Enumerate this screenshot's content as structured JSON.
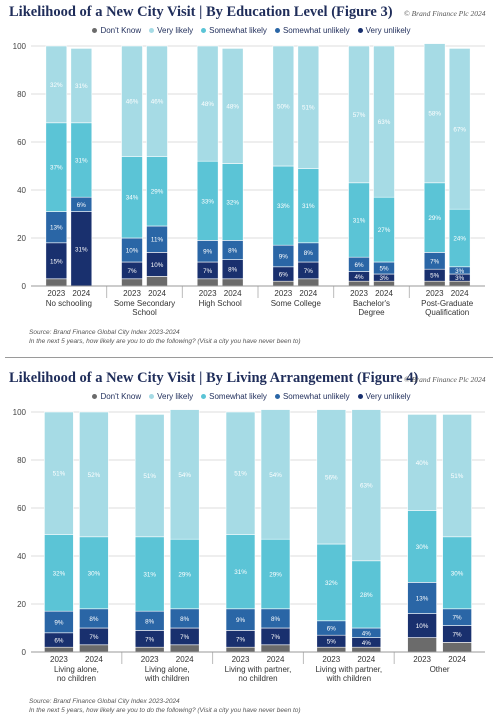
{
  "colors": {
    "dont_know": "#6b6b6b",
    "very_likely": "#a6dbe5",
    "somewhat_likely": "#5bc4d6",
    "somewhat_unlikely": "#2a66a6",
    "very_unlikely": "#19306e"
  },
  "legend": [
    {
      "label": "Don't Know",
      "color": "#6b6b6b"
    },
    {
      "label": "Very likely",
      "color": "#a6dbe5"
    },
    {
      "label": "Somewhat likely",
      "color": "#5bc4d6"
    },
    {
      "label": "Somewhat unlikely",
      "color": "#2a66a6"
    },
    {
      "label": "Very unlikely",
      "color": "#19306e"
    }
  ],
  "copyright": "© Brand Finance Plc 2024",
  "chart_data": [
    {
      "type": "bar",
      "stacked": true,
      "title": "Likelihood of a New City Visit | By Education Level (Figure 3)",
      "source": "Source: Brand Finance Global City Index 2023-2024",
      "question": "In the next 5 years, how likely are you to do the following? (Visit a city you have never been to)",
      "ylim": [
        0,
        100
      ],
      "yticks": [
        0,
        20,
        40,
        60,
        80,
        100
      ],
      "grid": true,
      "legend_position": "top",
      "groups": [
        {
          "label": [
            "No schooling"
          ],
          "bars": [
            {
              "year": "2023",
              "dont_know": 3,
              "very_unlikely": 15,
              "somewhat_unlikely": 13,
              "somewhat_likely": 37,
              "very_likely": 32
            },
            {
              "year": "2024",
              "dont_know": 0,
              "very_unlikely": 31,
              "somewhat_unlikely": 6,
              "somewhat_likely": 31,
              "very_likely": 31
            }
          ]
        },
        {
          "label": [
            "Some Secondary",
            "School"
          ],
          "bars": [
            {
              "year": "2023",
              "dont_know": 3,
              "very_unlikely": 7,
              "somewhat_unlikely": 10,
              "somewhat_likely": 34,
              "very_likely": 46
            },
            {
              "year": "2024",
              "dont_know": 4,
              "very_unlikely": 10,
              "somewhat_unlikely": 11,
              "somewhat_likely": 29,
              "very_likely": 46
            }
          ]
        },
        {
          "label": [
            "High School"
          ],
          "bars": [
            {
              "year": "2023",
              "dont_know": 3,
              "very_unlikely": 7,
              "somewhat_unlikely": 9,
              "somewhat_likely": 33,
              "very_likely": 48
            },
            {
              "year": "2024",
              "dont_know": 3,
              "very_unlikely": 8,
              "somewhat_unlikely": 8,
              "somewhat_likely": 32,
              "very_likely": 48
            }
          ]
        },
        {
          "label": [
            "Some College"
          ],
          "bars": [
            {
              "year": "2023",
              "dont_know": 2,
              "very_unlikely": 6,
              "somewhat_unlikely": 9,
              "somewhat_likely": 33,
              "very_likely": 50
            },
            {
              "year": "2024",
              "dont_know": 3,
              "very_unlikely": 7,
              "somewhat_unlikely": 8,
              "somewhat_likely": 31,
              "very_likely": 51
            }
          ]
        },
        {
          "label": [
            "Bachelor's",
            "Degree"
          ],
          "bars": [
            {
              "year": "2023",
              "dont_know": 2,
              "very_unlikely": 4,
              "somewhat_unlikely": 6,
              "somewhat_likely": 31,
              "very_likely": 57
            },
            {
              "year": "2024",
              "dont_know": 2,
              "very_unlikely": 3,
              "somewhat_unlikely": 5,
              "somewhat_likely": 27,
              "very_likely": 63
            }
          ]
        },
        {
          "label": [
            "Post-Graduate",
            "Qualification"
          ],
          "bars": [
            {
              "year": "2023",
              "dont_know": 2,
              "very_unlikely": 5,
              "somewhat_unlikely": 7,
              "somewhat_likely": 29,
              "very_likely": 58
            },
            {
              "year": "2024",
              "dont_know": 2,
              "very_unlikely": 3,
              "somewhat_unlikely": 3,
              "somewhat_likely": 24,
              "very_likely": 67
            }
          ]
        }
      ]
    },
    {
      "type": "bar",
      "stacked": true,
      "title": "Likelihood of a New City Visit | By Living Arrangement (Figure 4)",
      "source": "Source: Brand Finance Global City Index 2023-2024",
      "question": "In the next 5 years, how likely are you to do the following? (Visit a city you have never been to)",
      "ylim": [
        0,
        100
      ],
      "yticks": [
        0,
        20,
        40,
        60,
        80,
        100
      ],
      "grid": true,
      "legend_position": "top",
      "groups": [
        {
          "label": [
            "Living alone,",
            "no children"
          ],
          "bars": [
            {
              "year": "2023",
              "dont_know": 2,
              "very_unlikely": 6,
              "somewhat_unlikely": 9,
              "somewhat_likely": 32,
              "very_likely": 51
            },
            {
              "year": "2024",
              "dont_know": 3,
              "very_unlikely": 7,
              "somewhat_unlikely": 8,
              "somewhat_likely": 30,
              "very_likely": 52
            }
          ]
        },
        {
          "label": [
            "Living alone,",
            "with children"
          ],
          "bars": [
            {
              "year": "2023",
              "dont_know": 2,
              "very_unlikely": 7,
              "somewhat_unlikely": 8,
              "somewhat_likely": 31,
              "very_likely": 51
            },
            {
              "year": "2024",
              "dont_know": 3,
              "very_unlikely": 7,
              "somewhat_unlikely": 8,
              "somewhat_likely": 29,
              "very_likely": 54
            }
          ]
        },
        {
          "label": [
            "Living with partner,",
            "no children"
          ],
          "bars": [
            {
              "year": "2023",
              "dont_know": 2,
              "very_unlikely": 7,
              "somewhat_unlikely": 9,
              "somewhat_likely": 31,
              "very_likely": 51
            },
            {
              "year": "2024",
              "dont_know": 3,
              "very_unlikely": 7,
              "somewhat_unlikely": 8,
              "somewhat_likely": 29,
              "very_likely": 54
            }
          ]
        },
        {
          "label": [
            "Living with partner,",
            "with children"
          ],
          "bars": [
            {
              "year": "2023",
              "dont_know": 2,
              "very_unlikely": 5,
              "somewhat_unlikely": 6,
              "somewhat_likely": 32,
              "very_likely": 56
            },
            {
              "year": "2024",
              "dont_know": 2,
              "very_unlikely": 4,
              "somewhat_unlikely": 4,
              "somewhat_likely": 28,
              "very_likely": 63
            }
          ]
        },
        {
          "label": [
            "Other"
          ],
          "bars": [
            {
              "year": "2023",
              "dont_know": 6,
              "very_unlikely": 10,
              "somewhat_unlikely": 13,
              "somewhat_likely": 30,
              "very_likely": 40
            },
            {
              "year": "2024",
              "dont_know": 4,
              "very_unlikely": 7,
              "somewhat_unlikely": 7,
              "somewhat_likely": 30,
              "very_likely": 51
            }
          ]
        }
      ]
    }
  ]
}
